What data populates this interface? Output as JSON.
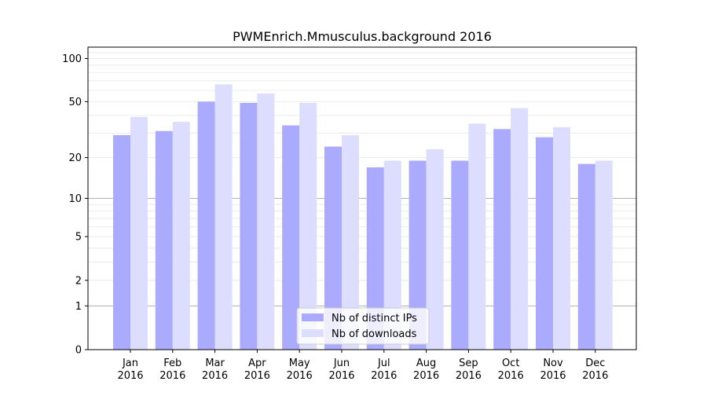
{
  "chart_data": {
    "type": "bar",
    "title": "PWMEnrich.Mmusculus.background 2016",
    "xlabel": "",
    "ylabel": "",
    "yscale": "log(1+y)",
    "ylim": [
      0,
      120
    ],
    "yticks": [
      0,
      1,
      2,
      5,
      10,
      20,
      50,
      100
    ],
    "categories": [
      "Jan\n2016",
      "Feb\n2016",
      "Mar\n2016",
      "Apr\n2016",
      "May\n2016",
      "Jun\n2016",
      "Jul\n2016",
      "Aug\n2016",
      "Sep\n2016",
      "Oct\n2016",
      "Nov\n2016",
      "Dec\n2016"
    ],
    "series": [
      {
        "name": "Nb of distinct IPs",
        "color": "#aaaaff",
        "values": [
          29,
          31,
          50,
          49,
          34,
          24,
          17,
          19,
          19,
          32,
          28,
          18
        ]
      },
      {
        "name": "Nb of downloads",
        "color": "#ddddff",
        "values": [
          39,
          36,
          66,
          57,
          49,
          29,
          19,
          23,
          35,
          45,
          33,
          19
        ]
      }
    ],
    "grid": {
      "major": [
        1,
        10
      ],
      "minor": true
    },
    "legend": "bottom-center"
  }
}
